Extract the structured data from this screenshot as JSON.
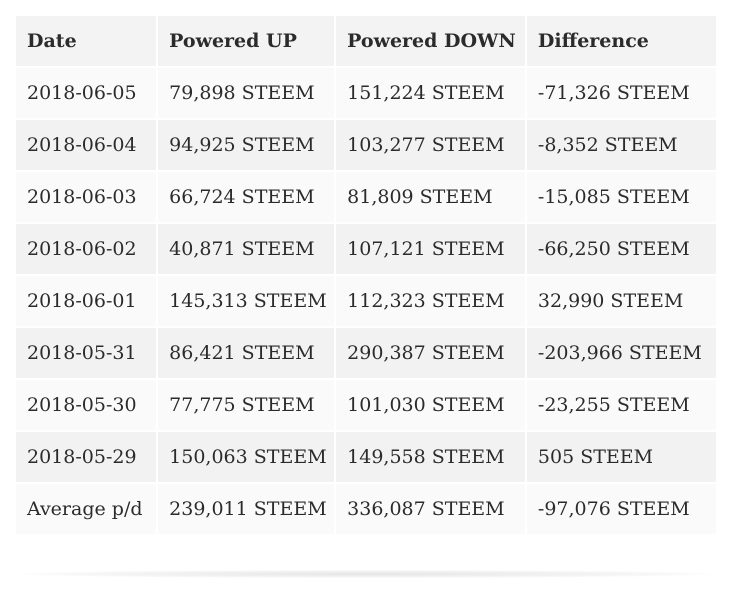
{
  "table": {
    "headers": [
      "Date",
      "Powered UP",
      "Powered DOWN",
      "Difference"
    ],
    "rows": [
      [
        "2018-06-05",
        "79,898 STEEM",
        "151,224 STEEM",
        "-71,326 STEEM"
      ],
      [
        "2018-06-04",
        "94,925 STEEM",
        "103,277 STEEM",
        "-8,352 STEEM"
      ],
      [
        "2018-06-03",
        "66,724 STEEM",
        "81,809 STEEM",
        "-15,085 STEEM"
      ],
      [
        "2018-06-02",
        "40,871 STEEM",
        "107,121 STEEM",
        "-66,250 STEEM"
      ],
      [
        "2018-06-01",
        "145,313 STEEM",
        "112,323 STEEM",
        "32,990 STEEM"
      ],
      [
        "2018-05-31",
        "86,421 STEEM",
        "290,387 STEEM",
        "-203,966 STEEM"
      ],
      [
        "2018-05-30",
        "77,775 STEEM",
        "101,030 STEEM",
        "-23,255 STEEM"
      ],
      [
        "2018-05-29",
        "150,063 STEEM",
        "149,558 STEEM",
        "505 STEEM"
      ],
      [
        "Average p/d",
        "239,011 STEEM",
        "336,087 STEEM",
        "-97,076 STEEM"
      ]
    ]
  }
}
